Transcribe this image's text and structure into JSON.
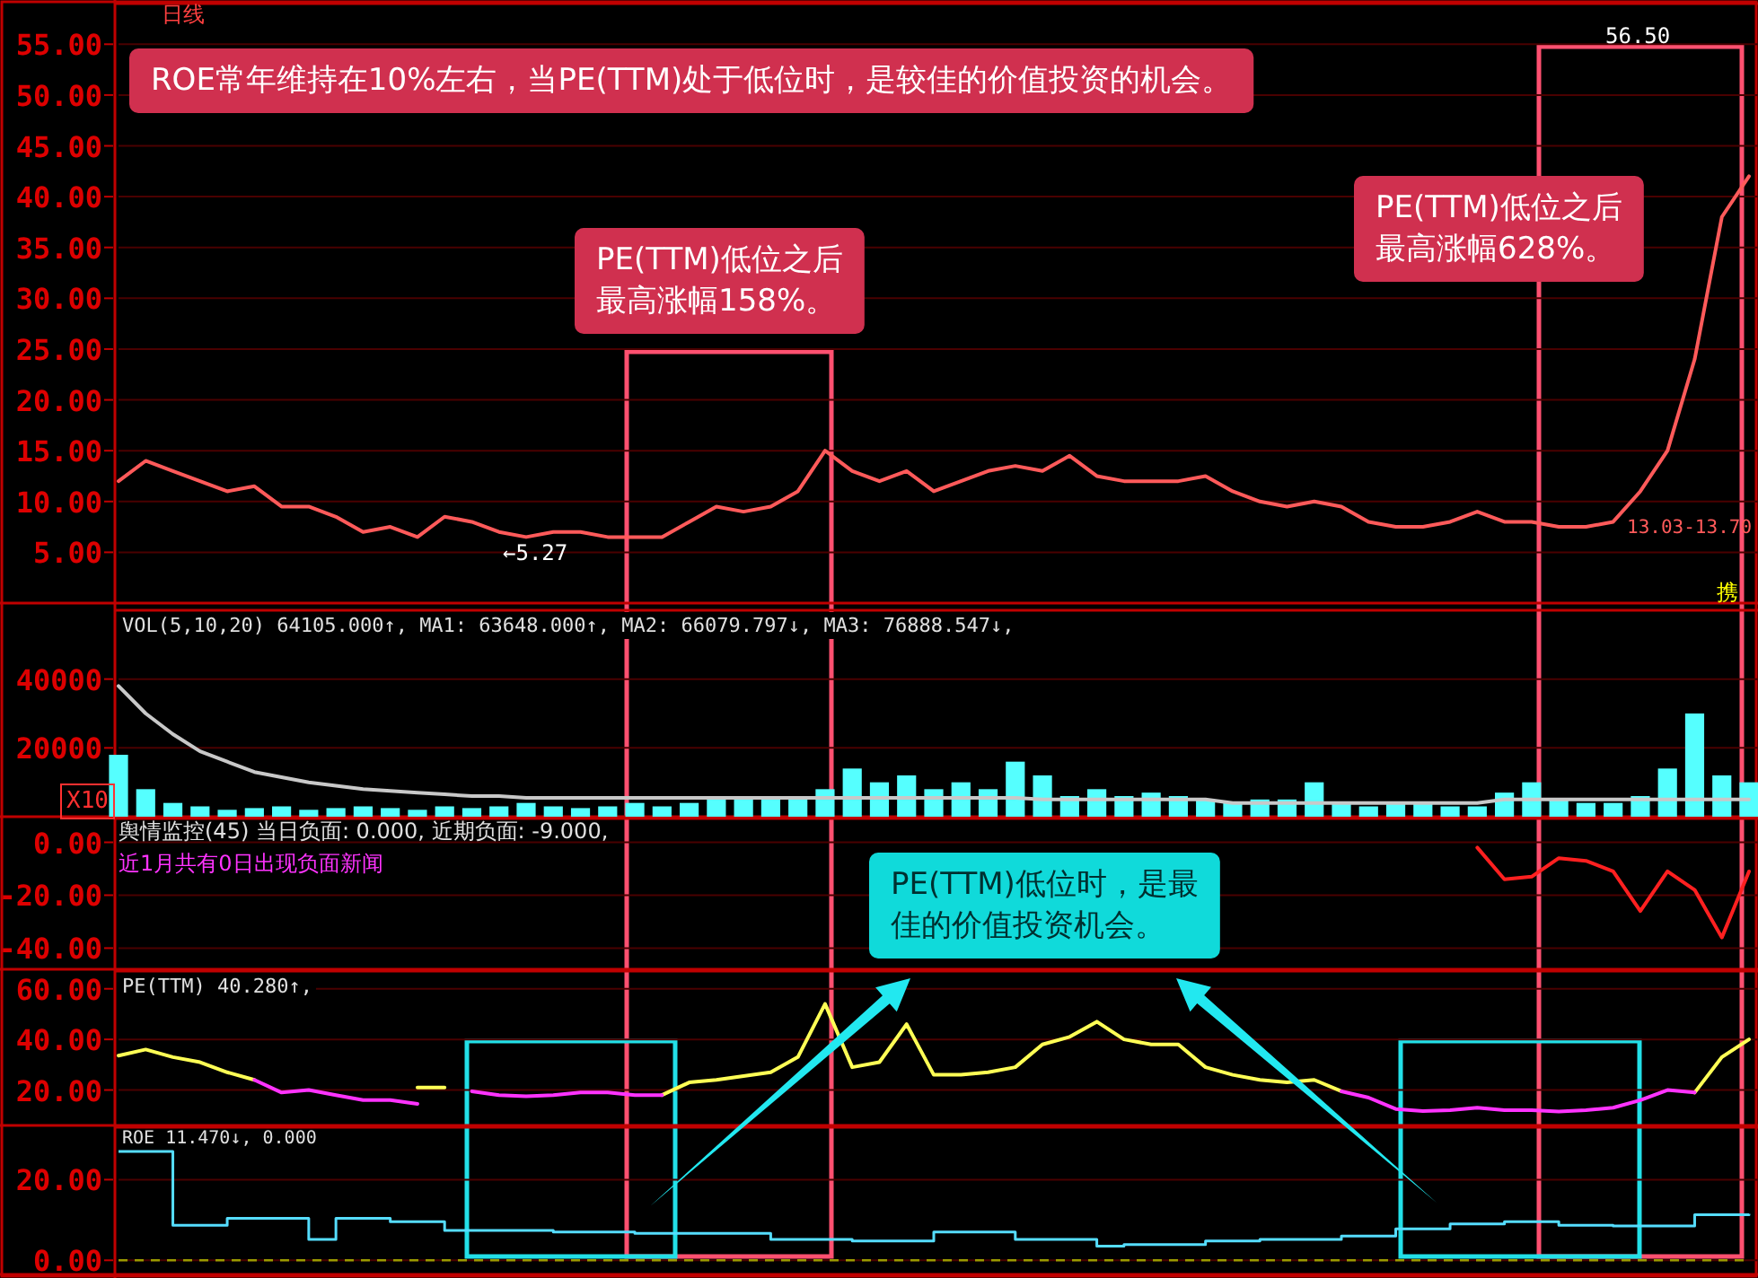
{
  "chart_data": [
    {
      "type": "line",
      "title": "日线",
      "categories": [
        null,
        null,
        null,
        null,
        null,
        null,
        null,
        null,
        null,
        null,
        null,
        null,
        null,
        null,
        null,
        null,
        null,
        null,
        null,
        null,
        null,
        null,
        null,
        null,
        null,
        null,
        null,
        null,
        null,
        null,
        null,
        null,
        null,
        null,
        null,
        null,
        null,
        null,
        null,
        null,
        null,
        null,
        null,
        null,
        null,
        null,
        null,
        null,
        null,
        null,
        null,
        null,
        null,
        null,
        null,
        null,
        null,
        null,
        null,
        null,
        null
      ],
      "series": [
        {
          "color": "#ff5a5a",
          "values": [
            12,
            14,
            13,
            12,
            11,
            11.5,
            9.5,
            9.5,
            8.5,
            7,
            7.5,
            6.5,
            8.5,
            8,
            7,
            6.5,
            7,
            7,
            6.5,
            6.5,
            6.5,
            8,
            9.5,
            9,
            9.5,
            11,
            15,
            13,
            12,
            13,
            11,
            12,
            13,
            13.5,
            13,
            14.5,
            12.5,
            12,
            12,
            12,
            12.5,
            11,
            10,
            9.5,
            10,
            9.5,
            8,
            7.5,
            7.5,
            8,
            9,
            8,
            8,
            7.5,
            7.5,
            8,
            11,
            15,
            24,
            38,
            42
          ]
        }
      ],
      "ylim": [
        0,
        59
      ],
      "yticks": [
        {
          "value": 5,
          "label": "5.00"
        },
        {
          "value": 10,
          "label": "10.00"
        },
        {
          "value": 15,
          "label": "15.00"
        },
        {
          "value": 20,
          "label": "20.00"
        },
        {
          "value": 25,
          "label": "25.00"
        },
        {
          "value": 30,
          "label": "30.00"
        },
        {
          "value": 35,
          "label": "35.00"
        },
        {
          "value": 40,
          "label": "40.00"
        },
        {
          "value": 45,
          "label": "45.00"
        },
        {
          "value": 50,
          "label": "50.00"
        },
        {
          "value": 55,
          "label": "55.00"
        }
      ],
      "grid": "y",
      "annotations": [
        "ROE常年维持在10%左右，当PE(TTM)处于低位时，是较佳的价值投资的机会。",
        "PE(TTM)低位之后最高涨幅158%。",
        "PE(TTM)低位之后最高涨幅628%。",
        "56.50",
        "←5.27",
        "13.03-13.70",
        "携"
      ]
    },
    {
      "type": "bar",
      "categories": [
        null,
        null,
        null,
        null,
        null,
        null,
        null,
        null,
        null,
        null,
        null,
        null,
        null,
        null,
        null,
        null,
        null,
        null,
        null,
        null,
        null,
        null,
        null,
        null,
        null,
        null,
        null,
        null,
        null,
        null,
        null,
        null,
        null,
        null,
        null,
        null,
        null,
        null,
        null,
        null,
        null,
        null,
        null,
        null,
        null,
        null,
        null,
        null,
        null,
        null,
        null,
        null,
        null,
        null,
        null,
        null,
        null,
        null,
        null,
        null,
        null
      ],
      "series": [
        {
          "color": "#55ffff",
          "values": [
            18000,
            8000,
            4000,
            3000,
            2000,
            2500,
            3000,
            2000,
            2500,
            3000,
            2500,
            2000,
            3000,
            2500,
            3000,
            4000,
            3000,
            2500,
            3000,
            4000,
            3000,
            4000,
            6000,
            5000,
            6000,
            6000,
            8000,
            14000,
            10000,
            12000,
            8000,
            10000,
            8000,
            16000,
            12000,
            6000,
            8000,
            6000,
            7000,
            6000,
            5000,
            4000,
            5000,
            5000,
            10000,
            4000,
            3000,
            4000,
            4000,
            3000,
            3000,
            7000,
            10000,
            5000,
            4000,
            4000,
            6000,
            14000,
            30000,
            12000,
            10000
          ]
        },
        {
          "type": "line",
          "color": "#c8c8c8",
          "values": [
            38000,
            30000,
            24000,
            19000,
            16000,
            13000,
            11500,
            10000,
            9000,
            8000,
            7500,
            7000,
            6500,
            6000,
            6000,
            5500,
            5500,
            5500,
            5500,
            5500,
            5500,
            5500,
            5500,
            5500,
            5500,
            5500,
            5500,
            5500,
            5500,
            5500,
            5500,
            5500,
            5500,
            5500,
            5000,
            5000,
            5000,
            5000,
            5000,
            5000,
            5000,
            4000,
            4000,
            4000,
            4000,
            4000,
            4000,
            4000,
            4000,
            4000,
            4000,
            5000,
            5000,
            5000,
            5000,
            5000,
            5000,
            5000,
            5000,
            5000,
            5000
          ]
        }
      ],
      "ylim": [
        0,
        60000
      ],
      "yticks": [
        20000,
        40000
      ],
      "grid": "y",
      "annotations": [
        "VOL(5,10,20) 64105.000↑, MA1: 63648.000↑, MA2: 66079.797↓, MA3: 76888.547↓,",
        "X10"
      ]
    },
    {
      "type": "line",
      "categories": [
        null,
        null,
        null,
        null,
        null,
        null,
        null,
        null,
        null,
        null,
        null,
        null,
        null,
        null,
        null,
        null,
        null,
        null,
        null,
        null,
        null,
        null,
        null,
        null,
        null,
        null,
        null,
        null,
        null,
        null,
        null,
        null,
        null,
        null,
        null,
        null,
        null,
        null,
        null,
        null,
        null,
        null,
        null,
        null,
        null,
        null,
        null,
        null,
        null,
        null,
        null,
        null,
        null,
        null,
        null,
        null,
        null,
        null,
        null,
        null,
        null
      ],
      "series": [
        {
          "color": "#ff2020",
          "values": [
            null,
            null,
            null,
            null,
            null,
            null,
            null,
            null,
            null,
            null,
            null,
            null,
            null,
            null,
            null,
            null,
            null,
            null,
            null,
            null,
            null,
            null,
            null,
            null,
            null,
            null,
            null,
            null,
            null,
            null,
            null,
            null,
            null,
            null,
            null,
            null,
            null,
            null,
            null,
            null,
            null,
            null,
            null,
            null,
            null,
            null,
            null,
            null,
            null,
            null,
            -2,
            -14,
            -13,
            -6,
            -7,
            -11,
            -26,
            -11,
            -18,
            -36,
            -11
          ]
        }
      ],
      "ylim": [
        -48,
        9
      ],
      "yticks": [
        {
          "value": 0,
          "label": "0.00"
        },
        {
          "value": -20,
          "label": "-20.00"
        },
        {
          "value": -40,
          "label": "-40.00"
        }
      ],
      "grid": "y",
      "annotations": [
        "舆情监控(45) 当日负面: 0.000, 近期负面: -9.000,",
        "近1月共有0日出现负面新闻",
        "PE(TTM)低位时，是最佳的价值投资机会。"
      ]
    },
    {
      "type": "line",
      "categories": [
        null,
        null,
        null,
        null,
        null,
        null,
        null,
        null,
        null,
        null,
        null,
        null,
        null,
        null,
        null,
        null,
        null,
        null,
        null,
        null,
        null,
        null,
        null,
        null,
        null,
        null,
        null,
        null,
        null,
        null,
        null,
        null,
        null,
        null,
        null,
        null,
        null,
        null,
        null,
        null,
        null,
        null,
        null,
        null,
        null,
        null,
        null,
        null,
        null,
        null,
        null,
        null,
        null,
        null,
        null,
        null,
        null,
        null,
        null,
        null,
        null
      ],
      "series": [
        {
          "color": "#ffff55",
          "values": [
            33.6,
            36,
            33,
            31,
            27,
            24,
            null,
            null,
            null,
            null,
            null,
            21,
            21,
            null,
            null,
            null,
            null,
            null,
            null,
            null,
            18,
            23,
            24,
            25.5,
            27,
            33,
            54,
            29,
            31,
            46,
            26,
            26,
            27,
            29,
            38,
            41,
            47,
            40,
            38,
            38,
            29,
            26,
            24,
            23,
            24,
            19.5,
            null,
            null,
            null,
            null,
            null,
            null,
            null,
            null,
            null,
            null,
            null,
            null,
            19,
            33,
            40
          ]
        },
        {
          "color": "#ff33ff",
          "values": [
            null,
            null,
            null,
            null,
            null,
            24,
            19,
            20,
            18,
            16,
            16,
            14.5,
            null,
            19.5,
            18,
            17.5,
            18,
            19,
            19,
            18,
            18,
            null,
            null,
            null,
            null,
            null,
            null,
            null,
            null,
            null,
            null,
            null,
            null,
            null,
            null,
            null,
            null,
            null,
            null,
            null,
            null,
            null,
            null,
            null,
            null,
            19.5,
            17,
            12.5,
            11.7,
            12,
            13,
            12,
            12,
            11.5,
            12,
            13,
            16,
            20,
            19,
            null,
            null
          ]
        }
      ],
      "ylim": [
        6,
        67
      ],
      "yticks": [
        {
          "value": 20,
          "label": "20.00"
        },
        {
          "value": 40,
          "label": "40.00"
        },
        {
          "value": 60,
          "label": "60.00"
        }
      ],
      "grid": "y",
      "annotations": [
        "PE(TTM) 40.280↑,"
      ]
    },
    {
      "type": "step",
      "categories": [
        null,
        null,
        null,
        null,
        null,
        null,
        null,
        null,
        null,
        null,
        null,
        null,
        null,
        null,
        null,
        null,
        null,
        null,
        null,
        null,
        null,
        null,
        null,
        null,
        null,
        null,
        null,
        null,
        null,
        null,
        null,
        null,
        null,
        null,
        null,
        null,
        null,
        null,
        null,
        null,
        null,
        null,
        null,
        null,
        null,
        null,
        null,
        null,
        null,
        null,
        null,
        null,
        null,
        null,
        null,
        null,
        null,
        null,
        null,
        null,
        null
      ],
      "series": [
        {
          "color": "#55ddff",
          "values": [
            27,
            27,
            8.7,
            8.7,
            10.4,
            10.4,
            10.4,
            5.2,
            10.4,
            10.4,
            9.6,
            9.6,
            7.4,
            7.4,
            7.4,
            7.4,
            7,
            7,
            7,
            6.7,
            6.7,
            6.7,
            6.7,
            6.7,
            5.2,
            5.2,
            5.2,
            4.8,
            4.8,
            4.8,
            7,
            7,
            7,
            5.2,
            5.2,
            5.2,
            3.5,
            3.9,
            3.9,
            3.9,
            4.8,
            4.8,
            5.2,
            5.2,
            5.2,
            6,
            6,
            7.8,
            7.8,
            9,
            9,
            9.6,
            9.6,
            8.7,
            8.7,
            8.5,
            8.5,
            8.5,
            11.3,
            11.3,
            11.5
          ]
        }
      ],
      "ylim": [
        -3.5,
        33
      ],
      "yticks": [
        {
          "value": 0,
          "label": "0.00"
        },
        {
          "value": 20,
          "label": "20.00"
        }
      ],
      "grid": "y",
      "ref_lines": [
        {
          "axis": "y",
          "value": 0,
          "color": "#9a9a00",
          "line_style": "dashed"
        }
      ],
      "annotations": [
        "ROE 11.470↓, 0.000"
      ]
    }
  ]
}
